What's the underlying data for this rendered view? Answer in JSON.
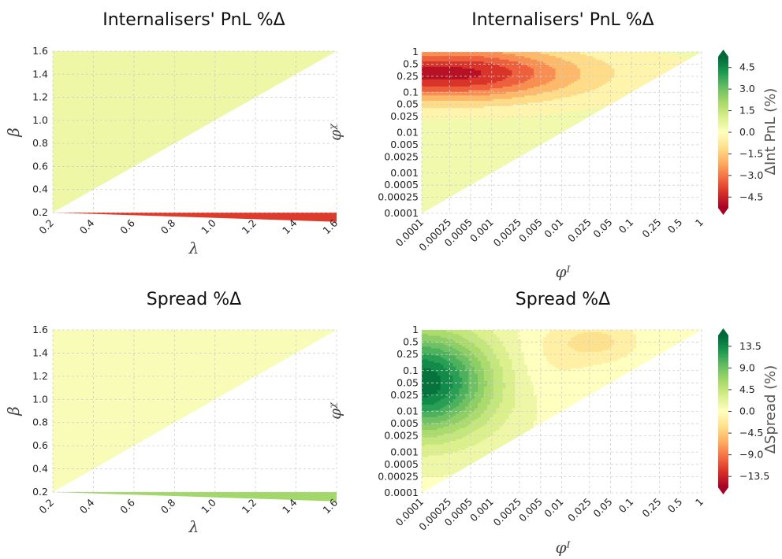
{
  "colors": {
    "palette_name": "RdYlGn",
    "neg_strong": "#a50026",
    "neutral": "#fefdc0",
    "pos_strong": "#006837"
  },
  "chart_data": [
    {
      "type": "heatmap",
      "title": "Internalisers' PnL %Δ",
      "xlabel": "λ",
      "ylabel": "β",
      "x_ticks": [
        "0.2",
        "0.4",
        "0.6",
        "0.8",
        "1.0",
        "1.2",
        "1.4",
        "1.6"
      ],
      "y_ticks": [
        "0.2",
        "0.4",
        "0.6",
        "0.8",
        "1.0",
        "1.2",
        "1.4",
        "1.6"
      ],
      "xlim": [
        0.2,
        1.6
      ],
      "ylim": [
        0.2,
        1.6
      ],
      "grid": true,
      "region": "upper-left triangle (β ≥ λ)",
      "bands": [
        {
          "boundary_slope_at_lambda_1.6": 1.6,
          "value_pct": 0.5
        },
        {
          "boundary_slope_at_lambda_1.6": 1.4,
          "value_pct": 0.0
        },
        {
          "boundary_slope_at_lambda_1.6": 1.2,
          "value_pct": -0.5
        },
        {
          "boundary_slope_at_lambda_1.6": 1.05,
          "value_pct": -1.0
        },
        {
          "boundary_slope_at_lambda_1.6": 0.92,
          "value_pct": -1.5
        },
        {
          "boundary_slope_at_lambda_1.6": 0.78,
          "value_pct": -2.0
        },
        {
          "boundary_slope_at_lambda_1.6": 0.62,
          "value_pct": -2.5
        },
        {
          "boundary_slope_at_lambda_1.6": 0.45,
          "value_pct": -3.0
        },
        {
          "boundary_slope_at_lambda_1.6": 0.28,
          "value_pct": -3.5
        },
        {
          "boundary_slope_at_lambda_1.6": 0.12,
          "value_pct": -4.0
        }
      ]
    },
    {
      "type": "heatmap",
      "title": "Internalisers' PnL %Δ",
      "xlabel": "φᴵ",
      "ylabel": "φᵡ",
      "x_ticks": [
        "0.0001",
        "0.00025",
        "0.0005",
        "0.001",
        "0.0025",
        "0.005",
        "0.01",
        "0.025",
        "0.05",
        "0.1",
        "0.25",
        "0.5",
        "1"
      ],
      "y_ticks": [
        "0.0001",
        "0.00025",
        "0.0005",
        "0.001",
        "0.0025",
        "0.005",
        "0.01",
        "0.025",
        "0.05",
        "0.1",
        "0.25",
        "0.5",
        "1"
      ],
      "log_scale": true,
      "grid": true,
      "region": "upper-left triangle (φᵡ ≥ φᴵ)",
      "peak_value_pct": -4.5,
      "peak_location": {
        "phi_I": 0.0005,
        "phi_X": 0.3
      },
      "colorbar": {
        "label": "ΔInt PnL (%)",
        "ticks": [
          4.5,
          3.0,
          1.5,
          0.0,
          -1.5,
          -3.0,
          -4.5
        ],
        "tick_labels": [
          "4.5",
          "3.0",
          "1.5",
          "0.0",
          "−1.5",
          "−3.0",
          "−4.5"
        ],
        "range": [
          -5.25,
          5.25
        ]
      }
    },
    {
      "type": "heatmap",
      "title": "Spread %Δ",
      "xlabel": "λ",
      "ylabel": "β",
      "x_ticks": [
        "0.2",
        "0.4",
        "0.6",
        "0.8",
        "1.0",
        "1.2",
        "1.4",
        "1.6"
      ],
      "y_ticks": [
        "0.2",
        "0.4",
        "0.6",
        "0.8",
        "1.0",
        "1.2",
        "1.4",
        "1.6"
      ],
      "xlim": [
        0.2,
        1.6
      ],
      "ylim": [
        0.2,
        1.6
      ],
      "grid": true,
      "region": "upper-left triangle (β ≥ λ)",
      "bands": [
        {
          "boundary_slope_at_lambda_1.6": 1.6,
          "value_pct": 0.5
        },
        {
          "boundary_slope_at_lambda_1.6": 1.3,
          "value_pct": 1.5
        },
        {
          "boundary_slope_at_lambda_1.6": 1.0,
          "value_pct": 2.5
        },
        {
          "boundary_slope_at_lambda_1.6": 0.78,
          "value_pct": 3.5
        },
        {
          "boundary_slope_at_lambda_1.6": 0.55,
          "value_pct": 4.5
        },
        {
          "boundary_slope_at_lambda_1.6": 0.35,
          "value_pct": 5.5
        },
        {
          "boundary_slope_at_lambda_1.6": 0.12,
          "value_pct": 6.5
        }
      ]
    },
    {
      "type": "heatmap",
      "title": "Spread %Δ",
      "xlabel": "φᴵ",
      "ylabel": "φᵡ",
      "x_ticks": [
        "0.0001",
        "0.00025",
        "0.0005",
        "0.001",
        "0.0025",
        "0.005",
        "0.01",
        "0.025",
        "0.05",
        "0.1",
        "0.25",
        "0.5",
        "1"
      ],
      "y_ticks": [
        "0.0001",
        "0.00025",
        "0.0005",
        "0.001",
        "0.0025",
        "0.005",
        "0.01",
        "0.025",
        "0.05",
        "0.1",
        "0.25",
        "0.5",
        "1"
      ],
      "log_scale": true,
      "grid": true,
      "region": "upper-left triangle (φᵡ ≥ φᴵ)",
      "peak_value_pct": 14.5,
      "peak_location": {
        "phi_I": 0.0001,
        "phi_X": 0.05
      },
      "min_value_pct": -3.0,
      "min_location": {
        "phi_I": 0.025,
        "phi_X": 0.5
      },
      "colorbar": {
        "label": "ΔSpread (%)",
        "ticks": [
          13.5,
          9.0,
          4.5,
          0.0,
          -4.5,
          -9.0,
          -13.5
        ],
        "tick_labels": [
          "13.5",
          "9.0",
          "4.5",
          "0.0",
          "−4.5",
          "−9.0",
          "−13.5"
        ],
        "range": [
          -15.75,
          15.75
        ]
      }
    }
  ]
}
